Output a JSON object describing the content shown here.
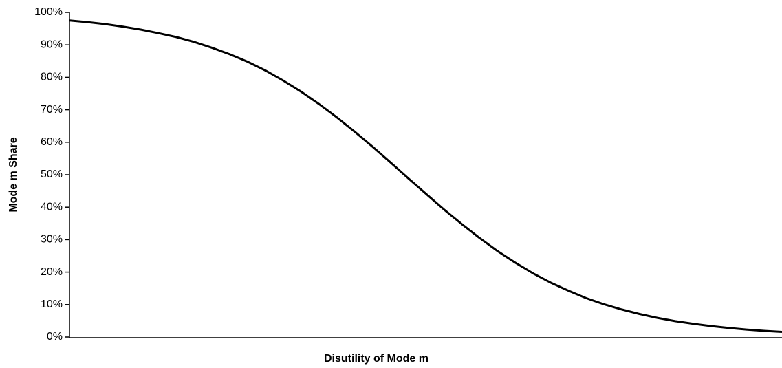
{
  "chart_data": {
    "type": "line",
    "x_label": "Disutility of Mode m",
    "y_label": "Mode m Share",
    "categories": [
      null,
      null,
      null,
      null,
      null,
      null,
      null,
      null,
      null,
      null,
      null,
      null,
      null,
      null,
      null,
      null,
      null,
      null,
      null,
      null,
      null,
      null,
      null,
      null,
      null,
      null,
      null,
      null,
      null,
      null,
      null,
      null,
      null,
      null,
      null,
      null,
      null,
      null,
      null,
      null,
      null
    ],
    "series": [
      {
        "name": null,
        "color": "#000000",
        "values": [
          97.5,
          97.0,
          96.4,
          95.6,
          94.7,
          93.6,
          92.4,
          90.9,
          89.1,
          87.1,
          84.8,
          82.1,
          79.0,
          75.6,
          71.8,
          67.7,
          63.3,
          58.7,
          53.9,
          49.0,
          44.2,
          39.4,
          34.9,
          30.6,
          26.6,
          23.0,
          19.7,
          16.8,
          14.3,
          12.0,
          10.1,
          8.5,
          7.1,
          5.9,
          4.9,
          4.1,
          3.4,
          2.8,
          2.3,
          1.9,
          1.6
        ]
      }
    ],
    "ylim": [
      0,
      100
    ],
    "yticks": [
      {
        "value": 0,
        "label": "0%"
      },
      {
        "value": 10,
        "label": "10%"
      },
      {
        "value": 20,
        "label": "20%"
      },
      {
        "value": 30,
        "label": "30%"
      },
      {
        "value": 40,
        "label": "40%"
      },
      {
        "value": 50,
        "label": "50%"
      },
      {
        "value": 60,
        "label": "60%"
      },
      {
        "value": 70,
        "label": "70%"
      },
      {
        "value": 80,
        "label": "80%"
      },
      {
        "value": 90,
        "label": "90%"
      },
      {
        "value": 100,
        "label": "100%"
      }
    ],
    "grid": false
  }
}
